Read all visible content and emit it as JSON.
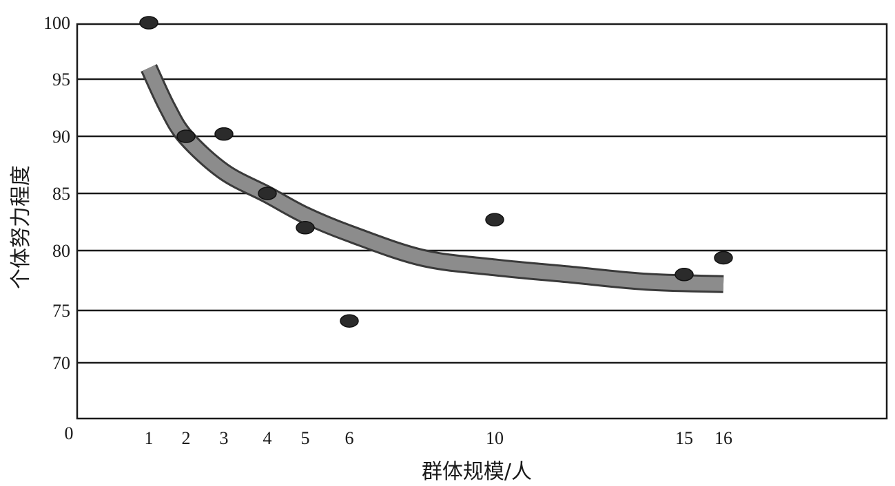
{
  "chart_data": {
    "type": "scatter",
    "xlabel": "群体规模/人",
    "ylabel": "个体努力程度",
    "x_ticks": [
      "0",
      "1",
      "2",
      "3",
      "4",
      "5",
      "6",
      "10",
      "15",
      "16"
    ],
    "y_ticks": [
      "100",
      "95",
      "90",
      "85",
      "80",
      "75",
      "70"
    ],
    "grid": true,
    "points": [
      {
        "x": 1,
        "y": 100
      },
      {
        "x": 2,
        "y": 90
      },
      {
        "x": 3,
        "y": 90.2
      },
      {
        "x": 4,
        "y": 85
      },
      {
        "x": 5,
        "y": 82
      },
      {
        "x": 6,
        "y": 74
      },
      {
        "x": 10,
        "y": 82.7
      },
      {
        "x": 15,
        "y": 78
      },
      {
        "x": 16,
        "y": 79.4
      }
    ],
    "trend_line": {
      "x": [
        1,
        1.5,
        2,
        3,
        4,
        5,
        6,
        8,
        10,
        12,
        14,
        16
      ],
      "y": [
        96,
        92.5,
        89.9,
        86.9,
        84.9,
        83.1,
        81.5,
        79.4,
        78.6,
        78.0,
        77.4,
        77.2
      ]
    }
  }
}
